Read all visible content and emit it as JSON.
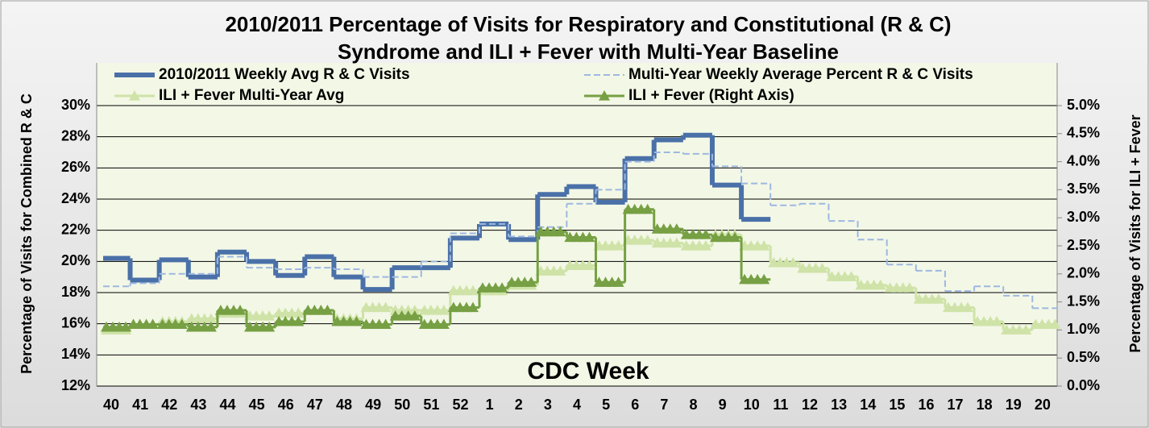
{
  "chart_data": {
    "type": "step-line",
    "title": [
      "2010/2011 Percentage of Visits for Respiratory and Constitutional (R & C)",
      "Syndrome and   ILI + Fever  with Multi-Year  Baseline"
    ],
    "x_label": "CDC Week",
    "y_label": "Percentage of Visits for Combined R & C",
    "y2_label": "Percentage of Visits for ILI + Fever",
    "categories": [
      "40",
      "41",
      "42",
      "43",
      "44",
      "45",
      "46",
      "47",
      "48",
      "49",
      "50",
      "51",
      "52",
      "1",
      "2",
      "3",
      "4",
      "5",
      "6",
      "7",
      "8",
      "9",
      "10",
      "11",
      "12",
      "13",
      "14",
      "15",
      "16",
      "17",
      "18",
      "19",
      "20"
    ],
    "series": [
      {
        "name": "2010/2011 Weekly Avg R & C Visits",
        "color": "#4a70a8",
        "style": "solid",
        "axis": "y",
        "values": [
          20.2,
          18.8,
          20.1,
          19.0,
          20.6,
          20.0,
          19.1,
          20.3,
          19.0,
          18.2,
          19.6,
          19.6,
          21.5,
          22.4,
          21.4,
          24.3,
          24.8,
          23.8,
          26.6,
          27.8,
          28.1,
          24.9,
          22.7,
          null,
          null,
          null,
          null,
          null,
          null,
          null,
          null,
          null,
          null
        ]
      },
      {
        "name": "Multi-Year Weekly Average Percent R & C Visits",
        "color": "#9db8e0",
        "style": "dashed",
        "axis": "y",
        "values": [
          18.4,
          18.6,
          19.2,
          19.2,
          20.3,
          19.6,
          19.5,
          19.6,
          19.5,
          19.0,
          19.0,
          20.0,
          21.8,
          22.4,
          21.6,
          22.2,
          23.7,
          24.6,
          26.4,
          27.0,
          26.9,
          26.1,
          25.0,
          23.6,
          23.7,
          22.6,
          21.4,
          19.8,
          19.4,
          18.1,
          18.4,
          17.8,
          17.0
        ]
      },
      {
        "name": "ILI + Fever Multi-Year Avg",
        "color": "#cfe3a8",
        "style": "triangles",
        "axis": "y2",
        "values": [
          1.0,
          1.1,
          1.15,
          1.2,
          1.3,
          1.25,
          1.3,
          1.35,
          1.2,
          1.4,
          1.35,
          1.35,
          1.7,
          1.7,
          1.8,
          2.05,
          2.15,
          2.5,
          2.6,
          2.55,
          2.5,
          2.7,
          2.5,
          2.2,
          2.1,
          1.95,
          1.8,
          1.75,
          1.55,
          1.4,
          1.15,
          1.0,
          1.1
        ]
      },
      {
        "name": "ILI + Fever (Right Axis)",
        "color": "#76a043",
        "style": "triangles",
        "axis": "y2",
        "values": [
          1.05,
          1.1,
          1.1,
          1.05,
          1.35,
          1.05,
          1.15,
          1.35,
          1.15,
          1.1,
          1.25,
          1.1,
          1.4,
          1.75,
          1.85,
          2.75,
          2.65,
          1.85,
          3.15,
          2.8,
          2.7,
          2.65,
          1.9,
          null,
          null,
          null,
          null,
          null,
          null,
          null,
          null,
          null,
          null
        ]
      }
    ],
    "ylim": [
      12,
      30
    ],
    "yticks": [
      {
        "value": 12,
        "label": "12%"
      },
      {
        "value": 14,
        "label": "14%"
      },
      {
        "value": 16,
        "label": "16%"
      },
      {
        "value": 18,
        "label": "18%"
      },
      {
        "value": 20,
        "label": "20%"
      },
      {
        "value": 22,
        "label": "22%"
      },
      {
        "value": 24,
        "label": "24%"
      },
      {
        "value": 26,
        "label": "26%"
      },
      {
        "value": 28,
        "label": "28%"
      },
      {
        "value": 30,
        "label": "30%"
      }
    ],
    "y2lim": [
      0,
      5
    ],
    "y2ticks": [
      {
        "value": 0,
        "label": "0.0%"
      },
      {
        "value": 0.5,
        "label": "0.5%"
      },
      {
        "value": 1,
        "label": "1.0%"
      },
      {
        "value": 1.5,
        "label": "1.5%"
      },
      {
        "value": 2,
        "label": "2.0%"
      },
      {
        "value": 2.5,
        "label": "2.5%"
      },
      {
        "value": 3,
        "label": "3.0%"
      },
      {
        "value": 3.5,
        "label": "3.5%"
      },
      {
        "value": 4,
        "label": "4.0%"
      },
      {
        "value": 4.5,
        "label": "4.5%"
      },
      {
        "value": 5,
        "label": "5.0%"
      }
    ],
    "grid": true
  }
}
